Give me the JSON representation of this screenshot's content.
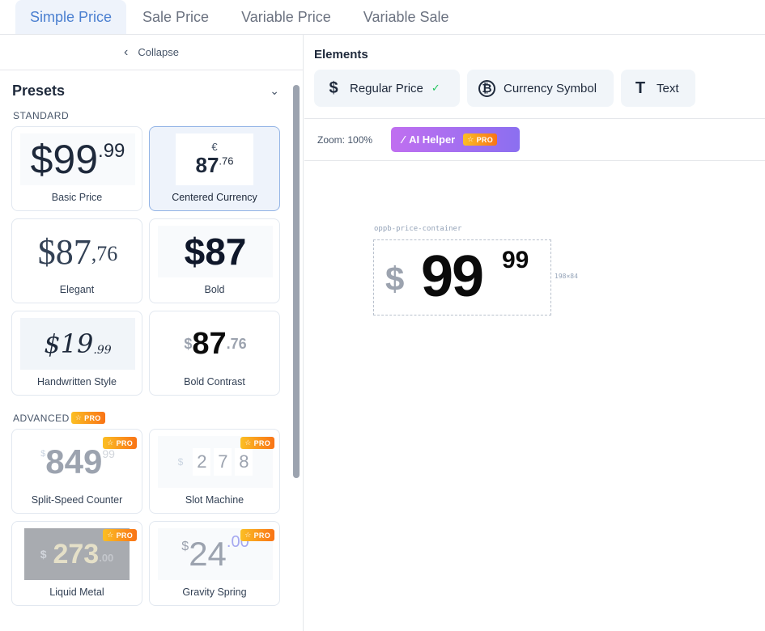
{
  "tabs": [
    {
      "label": "Simple Price",
      "active": true
    },
    {
      "label": "Sale Price",
      "active": false
    },
    {
      "label": "Variable Price",
      "active": false
    },
    {
      "label": "Variable Sale",
      "active": false
    }
  ],
  "sidebar": {
    "collapse_label": "Collapse",
    "presets_title": "Presets",
    "standard_label": "STANDARD",
    "advanced_label": "ADVANCED",
    "pro_label": "PRO",
    "cards": [
      {
        "label": "Basic Price",
        "currency": "$",
        "main": "99",
        "dec": ".99"
      },
      {
        "label": "Centered Currency",
        "currency": "€",
        "main": "87",
        "dec": ".76"
      },
      {
        "label": "Elegant",
        "currency": "$",
        "main": "87",
        "dec": ",76"
      },
      {
        "label": "Bold",
        "currency": "$",
        "main": "87",
        "dec": ""
      },
      {
        "label": "Handwritten Style",
        "currency": "$",
        "main": "19",
        "dec": ".99"
      },
      {
        "label": "Bold Contrast",
        "currency": "$",
        "main": "87",
        "dec": ".76"
      },
      {
        "label": "Split-Speed Counter",
        "currency": "$",
        "main": "849",
        "dec": "99"
      },
      {
        "label": "Slot Machine",
        "currency": "$",
        "main": "2",
        "dec": "7",
        "extra": "8"
      },
      {
        "label": "Liquid Metal",
        "currency": "$",
        "main": "273",
        "dec": ".00"
      },
      {
        "label": "Gravity Spring",
        "currency": "$",
        "main": "24",
        "dec": ".00"
      }
    ]
  },
  "elements": {
    "title": "Elements",
    "buttons": [
      {
        "label": "Regular Price",
        "icon": "dollar-icon",
        "checked": true
      },
      {
        "label": "Currency Symbol",
        "icon": "bitcoin-icon"
      },
      {
        "label": "Text",
        "icon": "text-icon"
      }
    ]
  },
  "toolbar": {
    "zoom": "Zoom: 100%",
    "ai_label": "AI Helper",
    "pro_label": "PRO"
  },
  "canvas": {
    "container_label": "oppb-price-container",
    "currency": "$",
    "main": "99",
    "dec": "99",
    "size_label": "198×84"
  },
  "colors": {
    "accent": "#4a7fd0",
    "pro_orange": "#f97316",
    "ai_purple": "#a86ff0",
    "check_green": "#22c55e"
  }
}
